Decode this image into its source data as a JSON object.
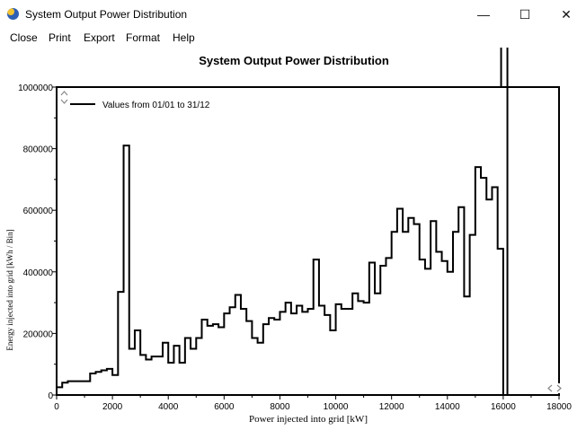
{
  "window": {
    "title": "System Output Power Distribution",
    "minimize_glyph": "—",
    "maximize_glyph": "☐",
    "close_glyph": "✕",
    "icon": "sun-app-icon"
  },
  "menu": {
    "items": [
      {
        "label": "Close"
      },
      {
        "label": "Print"
      },
      {
        "label": "Export"
      },
      {
        "label": "Format"
      },
      {
        "label": "Help"
      }
    ]
  },
  "chart_data": {
    "type": "line",
    "step": true,
    "title": "System Output Power Distribution",
    "xlabel": "Power injected into grid [kW]",
    "ylabel": "Energy injected into grid [kWh / Bin]",
    "xlim": [
      0,
      18000
    ],
    "ylim": [
      0,
      1000000
    ],
    "xticks": [
      0,
      2000,
      4000,
      6000,
      8000,
      10000,
      12000,
      14000,
      16000,
      18000
    ],
    "yticks": [
      0,
      200000,
      400000,
      600000,
      800000,
      1000000
    ],
    "xtick_labels": [
      "0",
      "2000",
      "4000",
      "6000",
      "8000",
      "10000",
      "12000",
      "14000",
      "16000",
      "18000"
    ],
    "ytick_labels": [
      "0",
      "200000",
      "400000",
      "600000",
      "800000",
      "1000000"
    ],
    "grid": false,
    "legend_position": "top-left",
    "marker_line_x": 16150,
    "series": [
      {
        "name": "Values from 01/01 to 31/12",
        "color": "#000000",
        "x": [
          0,
          200,
          400,
          1200,
          1400,
          1600,
          1800,
          2000,
          2200,
          2400,
          2600,
          2800,
          3000,
          3200,
          3400,
          3600,
          3800,
          4000,
          4200,
          4400,
          4600,
          4800,
          5000,
          5200,
          5400,
          5600,
          5800,
          6000,
          6200,
          6400,
          6600,
          6800,
          7000,
          7200,
          7400,
          7600,
          7800,
          8000,
          8200,
          8400,
          8600,
          8800,
          9000,
          9200,
          9400,
          9600,
          9800,
          10000,
          10200,
          10400,
          10600,
          10800,
          11000,
          11200,
          11400,
          11600,
          11800,
          12000,
          12200,
          12400,
          12600,
          12800,
          13000,
          13200,
          13400,
          13600,
          13800,
          14000,
          14200,
          14400,
          14600,
          14800,
          15000,
          15200,
          15400,
          15600,
          15800,
          16000
        ],
        "values": [
          25000,
          40000,
          45000,
          70000,
          75000,
          80000,
          85000,
          65000,
          335000,
          810000,
          150000,
          210000,
          130000,
          115000,
          125000,
          125000,
          170000,
          105000,
          160000,
          105000,
          185000,
          150000,
          185000,
          245000,
          225000,
          230000,
          220000,
          265000,
          285000,
          325000,
          280000,
          240000,
          185000,
          170000,
          230000,
          250000,
          245000,
          270000,
          300000,
          265000,
          290000,
          270000,
          280000,
          440000,
          290000,
          260000,
          210000,
          295000,
          280000,
          280000,
          330000,
          305000,
          300000,
          430000,
          330000,
          420000,
          445000,
          530000,
          605000,
          530000,
          575000,
          555000,
          440000,
          410000,
          565000,
          465000,
          435000,
          400000,
          530000,
          610000,
          320000,
          520000,
          740000,
          705000,
          635000,
          675000,
          475000,
          0
        ]
      }
    ]
  }
}
